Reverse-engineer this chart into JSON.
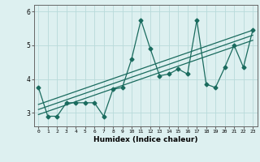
{
  "title": "",
  "xlabel": "Humidex (Indice chaleur)",
  "bg_color": "#ddf0f0",
  "line_color": "#1a6b5e",
  "grid_color": "#b8dada",
  "xlim": [
    -0.5,
    23.5
  ],
  "ylim": [
    2.6,
    6.2
  ],
  "yticks": [
    3,
    4,
    5,
    6
  ],
  "xticks": [
    0,
    1,
    2,
    3,
    4,
    5,
    6,
    7,
    8,
    9,
    10,
    11,
    12,
    13,
    14,
    15,
    16,
    17,
    18,
    19,
    20,
    21,
    22,
    23
  ],
  "series1_x": [
    0,
    1,
    2,
    3,
    4,
    5,
    6,
    7,
    8,
    9,
    10,
    11,
    12,
    13,
    14,
    15,
    16,
    17,
    18,
    19,
    20,
    21,
    22,
    23
  ],
  "series1_y": [
    3.75,
    2.9,
    2.9,
    3.3,
    3.3,
    3.3,
    3.3,
    2.9,
    3.7,
    3.75,
    4.6,
    5.75,
    4.9,
    4.1,
    4.15,
    4.3,
    4.15,
    5.75,
    3.85,
    3.75,
    4.35,
    5.0,
    4.35,
    5.45
  ],
  "series2_x": [
    0,
    23
  ],
  "series2_y": [
    2.95,
    5.15
  ],
  "series3_x": [
    0,
    23
  ],
  "series3_y": [
    3.1,
    5.3
  ],
  "series4_x": [
    0,
    23
  ],
  "series4_y": [
    3.25,
    5.45
  ]
}
